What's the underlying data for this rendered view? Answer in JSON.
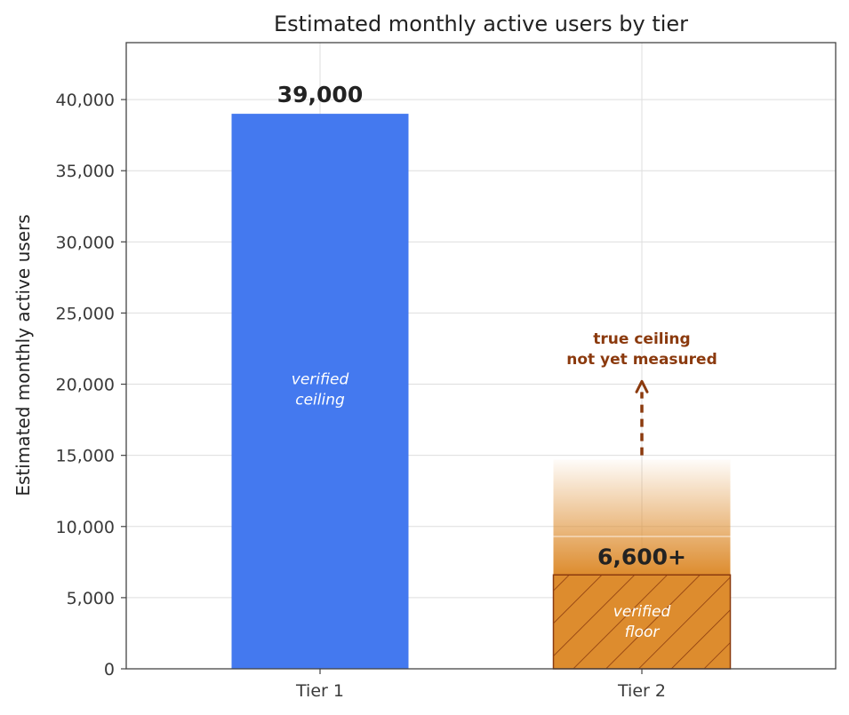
{
  "chart_data": {
    "type": "bar",
    "title": "Estimated monthly active users by tier",
    "xlabel": "",
    "ylabel": "Estimated monthly active users",
    "ylim": [
      0,
      44000
    ],
    "yticks": [
      0,
      5000,
      10000,
      15000,
      20000,
      25000,
      30000,
      35000,
      40000
    ],
    "ytick_labels": [
      "0",
      "5,000",
      "10,000",
      "15,000",
      "20,000",
      "25,000",
      "30,000",
      "35,000",
      "40,000"
    ],
    "grid": true,
    "categories": [
      "Tier 1",
      "Tier 2"
    ],
    "values": [
      39000,
      6600
    ],
    "value_labels": [
      "39,000",
      "6,600+"
    ],
    "inner_labels": [
      [
        "verified",
        "ceiling"
      ],
      [
        "verified",
        "floor"
      ]
    ],
    "gradient_extension_top": 14700,
    "annotation": {
      "lines": [
        "true ceiling",
        "not yet measured"
      ],
      "arrow_from": 15000,
      "arrow_to": 20200
    },
    "colors": {
      "tier1": "#4479ef",
      "tier2": "#dd8c2e",
      "tier2_edge": "#8b3a0e",
      "annotation": "#8b3a0e"
    }
  }
}
